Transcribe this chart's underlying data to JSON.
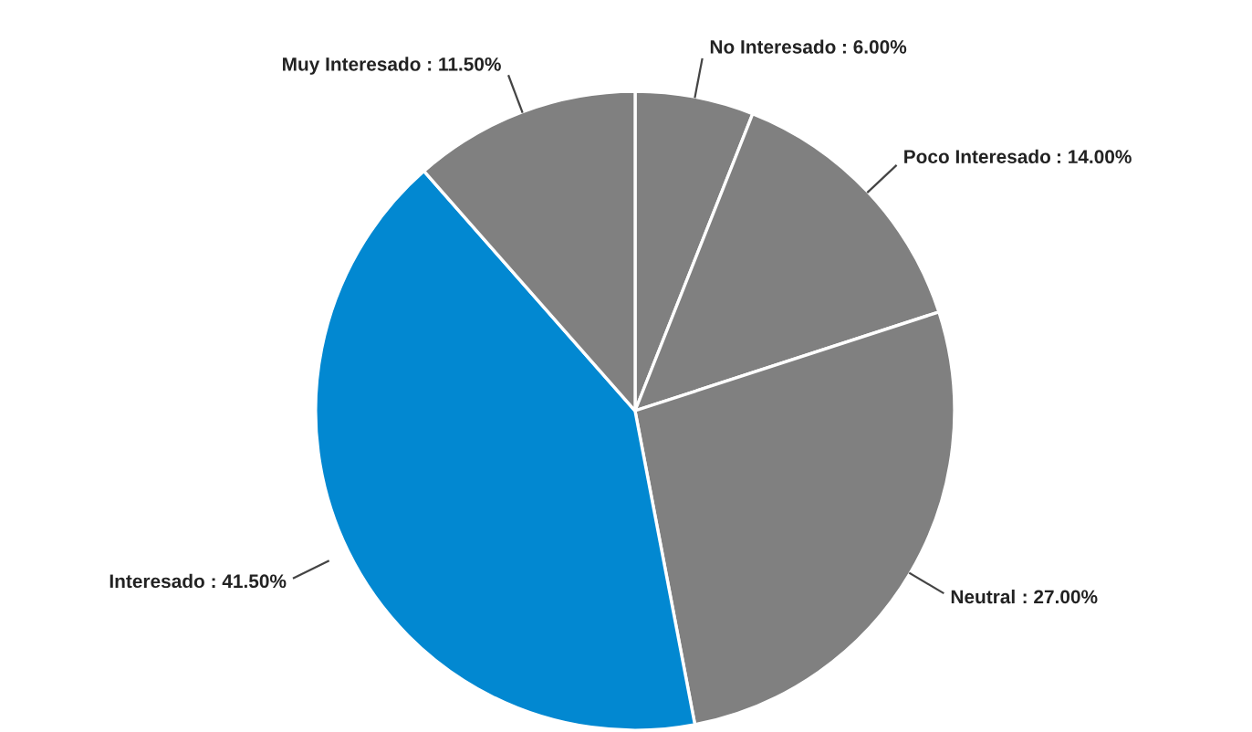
{
  "chart_data": {
    "type": "pie",
    "categories": [
      "No Interesado",
      "Poco Interesado",
      "Neutral",
      "Interesado",
      "Muy Interesado"
    ],
    "values": [
      6.0,
      14.0,
      27.0,
      41.5,
      11.5
    ],
    "colors": [
      "#808080",
      "#808080",
      "#808080",
      "#0288d1",
      "#808080"
    ],
    "value_labels": [
      ": 6.00%",
      ": 14.00%",
      ": 27.00%",
      ": 41.50%",
      ": 11.50%"
    ]
  }
}
